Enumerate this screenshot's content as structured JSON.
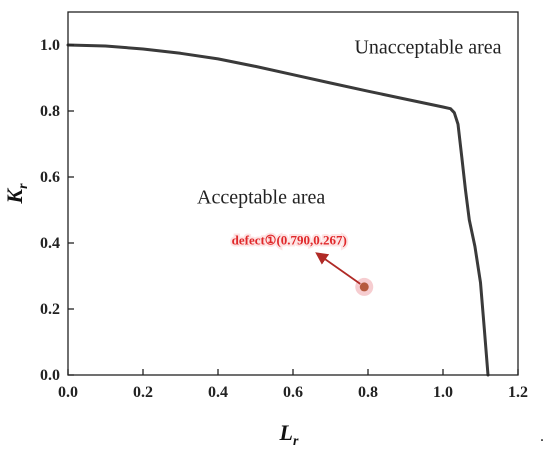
{
  "chart_data": {
    "type": "line",
    "xlabel": "L",
    "xlabel_sub": "r",
    "ylabel": "K",
    "ylabel_sub": "r",
    "xlim": [
      0.0,
      1.2
    ],
    "ylim": [
      0.0,
      1.1
    ],
    "xticks": [
      "0.0",
      "0.2",
      "0.4",
      "0.6",
      "0.8",
      "1.0",
      "1.2"
    ],
    "yticks": [
      "0.0",
      "0.2",
      "0.4",
      "0.6",
      "0.8",
      "1.0"
    ],
    "grid": false,
    "series": [
      {
        "color": "#3a3a3a",
        "points": [
          [
            0.0,
            1.0
          ],
          [
            0.1,
            0.997
          ],
          [
            0.2,
            0.988
          ],
          [
            0.3,
            0.975
          ],
          [
            0.4,
            0.958
          ],
          [
            0.5,
            0.935
          ],
          [
            0.6,
            0.91
          ],
          [
            0.7,
            0.885
          ],
          [
            0.8,
            0.86
          ],
          [
            0.9,
            0.836
          ],
          [
            1.0,
            0.812
          ],
          [
            1.02,
            0.807
          ],
          [
            1.03,
            0.795
          ],
          [
            1.04,
            0.76
          ],
          [
            1.05,
            0.66
          ],
          [
            1.06,
            0.56
          ],
          [
            1.07,
            0.47
          ],
          [
            1.085,
            0.39
          ],
          [
            1.1,
            0.28
          ],
          [
            1.11,
            0.14
          ],
          [
            1.12,
            0.0
          ]
        ]
      }
    ],
    "regions": [
      {
        "label": "Unacceptable area",
        "x": 0.96,
        "y": 0.975
      },
      {
        "label": "Acceptable area",
        "x": 0.515,
        "y": 0.52
      }
    ],
    "points": [
      {
        "label": "defect①(0.790,0.267)",
        "x": 0.79,
        "y": 0.267,
        "color": "#e0282a",
        "label_x": 0.59,
        "label_y": 0.395
      }
    ],
    "trailing_text": "."
  }
}
